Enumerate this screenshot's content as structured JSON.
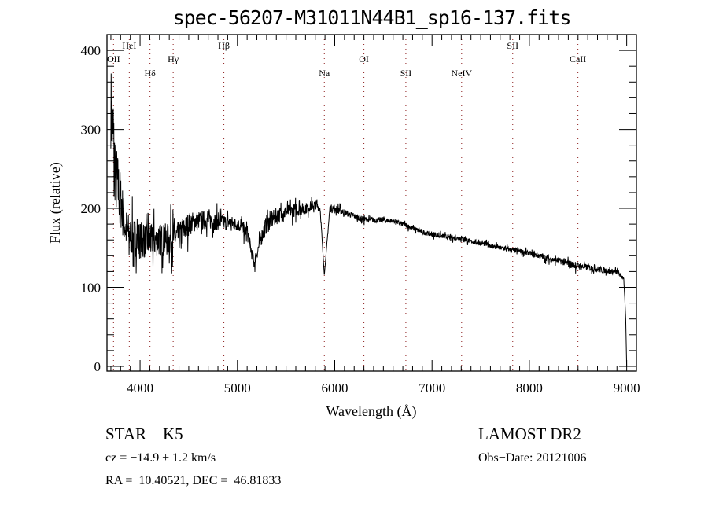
{
  "chart_data": {
    "type": "line",
    "title": "spec-56207-M31011N44B1_sp16-137.fits",
    "xlabel": "Wavelength (Å)",
    "ylabel": "Flux (relative)",
    "xlim": [
      3660,
      9100
    ],
    "ylim": [
      -6,
      420
    ],
    "xticks": [
      4000,
      5000,
      6000,
      7000,
      8000,
      9000
    ],
    "yticks": [
      0,
      100,
      200,
      300,
      400
    ],
    "grid": false,
    "continuum": {
      "wavelength": [
        3700,
        3750,
        3800,
        3850,
        3900,
        4000,
        4100,
        4200,
        4300,
        4400,
        4500,
        4600,
        4700,
        4800,
        4900,
        5000,
        5100,
        5170,
        5250,
        5300,
        5400,
        5500,
        5600,
        5700,
        5800,
        5850,
        5893,
        5950,
        6000,
        6100,
        6200,
        6300,
        6400,
        6500,
        6600,
        6700,
        6800,
        6900,
        7000,
        7100,
        7200,
        7300,
        7400,
        7500,
        7600,
        7700,
        7800,
        7900,
        8000,
        8100,
        8200,
        8300,
        8400,
        8500,
        8600,
        8700,
        8800,
        8900,
        8970,
        8990,
        9000
      ],
      "flux": [
        330,
        240,
        210,
        175,
        165,
        160,
        158,
        160,
        160,
        165,
        180,
        185,
        185,
        183,
        182,
        180,
        170,
        130,
        165,
        180,
        190,
        195,
        198,
        200,
        205,
        200,
        115,
        200,
        200,
        195,
        190,
        186,
        185,
        185,
        184,
        180,
        175,
        170,
        167,
        165,
        163,
        162,
        158,
        156,
        153,
        150,
        148,
        146,
        143,
        140,
        136,
        134,
        130,
        127,
        125,
        123,
        121,
        119,
        112,
        60,
        0
      ],
      "noise": [
        90,
        80,
        60,
        45,
        40,
        40,
        35,
        35,
        35,
        30,
        25,
        20,
        20,
        18,
        16,
        14,
        16,
        12,
        18,
        20,
        18,
        15,
        14,
        12,
        10,
        8,
        0,
        8,
        8,
        7,
        6,
        6,
        6,
        6,
        5,
        5,
        5,
        5,
        5,
        5,
        5,
        5,
        5,
        5,
        5,
        5,
        5,
        5,
        5,
        6,
        6,
        6,
        8,
        8,
        7,
        7,
        6,
        6,
        4,
        0,
        0
      ]
    },
    "lines": [
      {
        "label": "OII",
        "wavelength": 3727,
        "row": 2
      },
      {
        "label": "HeI",
        "wavelength": 3889,
        "row": 1
      },
      {
        "label": "Hδ",
        "wavelength": 4102,
        "row": 3
      },
      {
        "label": "Hγ",
        "wavelength": 4340,
        "row": 2
      },
      {
        "label": "Hβ",
        "wavelength": 4861,
        "row": 1
      },
      {
        "label": "Na",
        "wavelength": 5893,
        "row": 3
      },
      {
        "label": "OI",
        "wavelength": 6300,
        "row": 2
      },
      {
        "label": "SII",
        "wavelength": 6731,
        "row": 3
      },
      {
        "label": "NeIV",
        "wavelength": 7304,
        "row": 3
      },
      {
        "label": "SII",
        "wavelength": 7829,
        "row": 1
      },
      {
        "label": "CaII",
        "wavelength": 8499,
        "row": 2
      }
    ],
    "line_color": "#000000",
    "marker_color": "#8b1a1a"
  },
  "info": {
    "class": "STAR",
    "subclass": "K5",
    "cz": "cz = −14.9 ± 1.2 km/s",
    "coords": "RA =  10.40521, DEC =  46.81833",
    "survey": "LAMOST DR2",
    "obs_date": "Obs−Date: 20121006"
  }
}
